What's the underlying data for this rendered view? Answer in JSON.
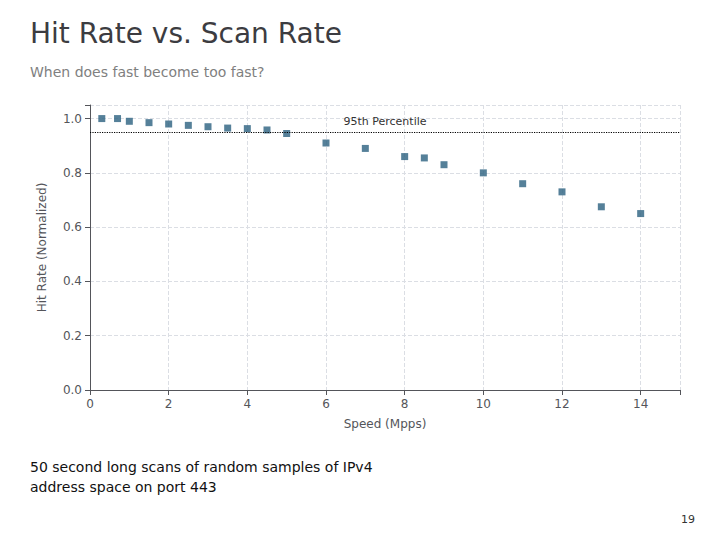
{
  "chart_data": {
    "type": "scatter",
    "title": "Hit Rate vs. Scan Rate",
    "subtitle": "When does fast become too fast?",
    "footnote": "50 second long scans of random samples of IPv4\naddress space on port 443",
    "page_number": "19",
    "xlabel": "Speed (Mpps)",
    "ylabel": "Hit Rate (Normalized)",
    "x": [
      0.3,
      0.7,
      1.0,
      1.5,
      2.0,
      2.5,
      3.0,
      3.5,
      4.0,
      4.5,
      5.0,
      6.0,
      7.0,
      8.0,
      8.5,
      9.0,
      10.0,
      11.0,
      12.0,
      13.0,
      14.0
    ],
    "values": [
      1.0,
      1.0,
      0.99,
      0.985,
      0.98,
      0.975,
      0.97,
      0.965,
      0.963,
      0.958,
      0.945,
      0.91,
      0.89,
      0.86,
      0.855,
      0.83,
      0.8,
      0.76,
      0.73,
      0.675,
      0.65
    ],
    "color": "#2a6080",
    "marker": "square",
    "reference_line": {
      "y": 0.95,
      "label": "95th Percentile"
    },
    "xlim": [
      0,
      15
    ],
    "ylim": [
      0,
      1.05
    ],
    "xticks": [
      0,
      2,
      4,
      6,
      8,
      10,
      12,
      14
    ],
    "yticks": [
      {
        "value": 0,
        "label": "0.0"
      },
      0.2,
      0.4,
      0.6,
      0.8,
      {
        "value": 1.0,
        "label": "1.0"
      }
    ],
    "grid": true
  }
}
